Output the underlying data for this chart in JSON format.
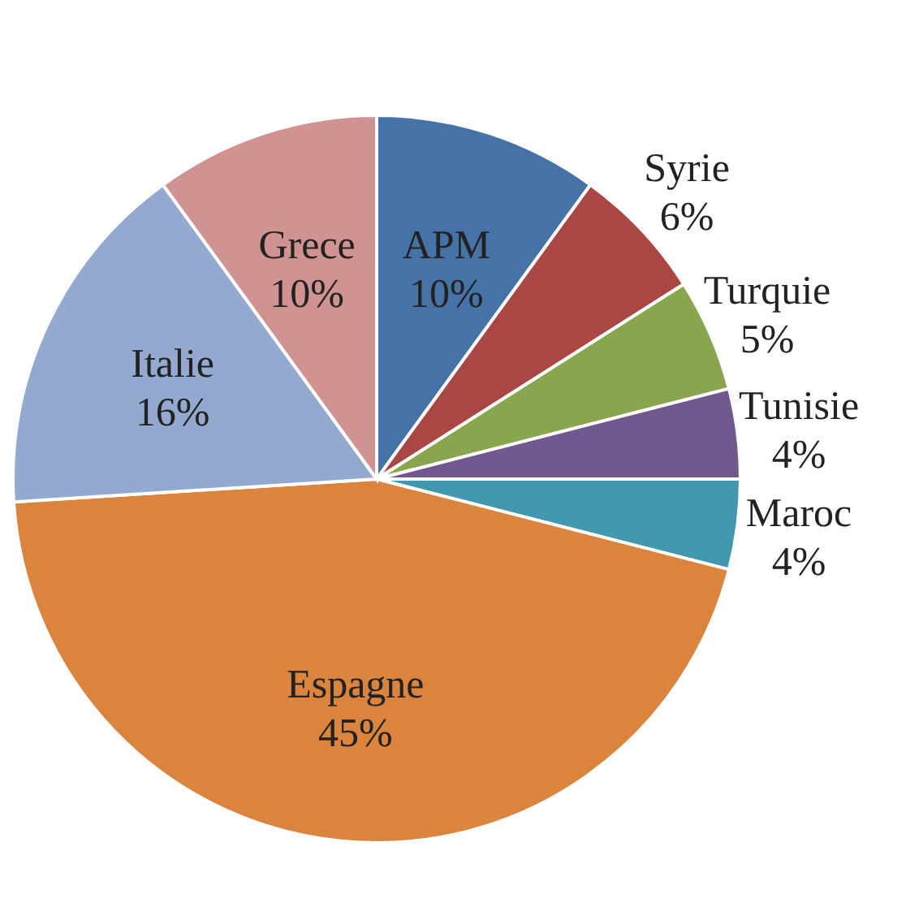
{
  "chart_data": {
    "type": "pie",
    "categories": [
      "APM",
      "Syrie",
      "Turquie",
      "Tunisie",
      "Maroc",
      "Espagne",
      "Italie",
      "Grece"
    ],
    "values": [
      10,
      6,
      5,
      4,
      4,
      45,
      16,
      10
    ],
    "colors": [
      "#4572a7",
      "#aa4643",
      "#89a54e",
      "#71588f",
      "#4198af",
      "#db843d",
      "#93a9cf",
      "#d19392"
    ],
    "value_labels": [
      "10%",
      "6%",
      "5%",
      "4%",
      "4%",
      "45%",
      "16%",
      "10%"
    ]
  }
}
